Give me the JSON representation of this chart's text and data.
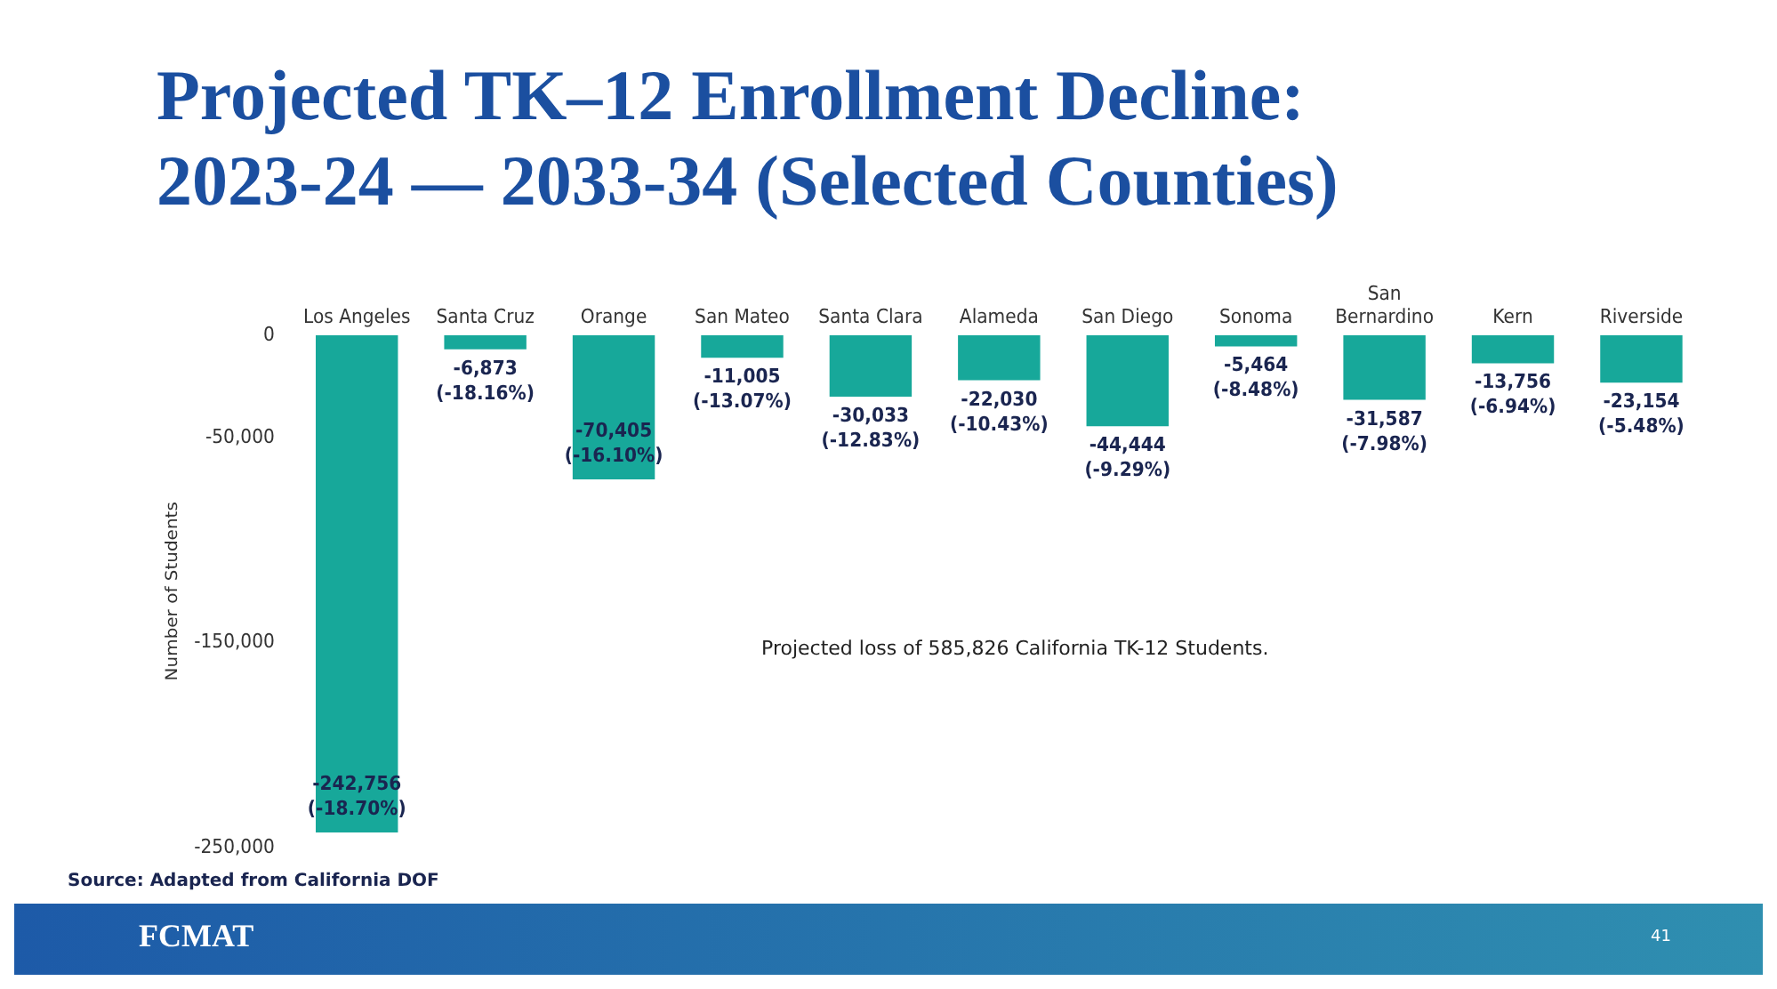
{
  "chart_data": {
    "type": "bar",
    "title": "Projected TK–12 Enrollment Decline:\n2023-24 — 2033-34 (Selected Counties)",
    "ylabel": "Number of Students",
    "categories": [
      "Los Angeles",
      "Santa Cruz",
      "Orange",
      "San Mateo",
      "Santa Clara",
      "Alameda",
      "San Diego",
      "Sonoma",
      "San Bernardino",
      "Kern",
      "Riverside"
    ],
    "values": [
      -242756,
      -6873,
      -70405,
      -11005,
      -30033,
      -22030,
      -44444,
      -5464,
      -31587,
      -13756,
      -23154
    ],
    "value_labels": [
      "-242,756\n(-18.70%)",
      "-6,873\n(-18.16%)",
      "-70,405\n(-16.10%)",
      "-11,005\n(-13.07%)",
      "-30,033\n(-12.83%)",
      "-22,030\n(-10.43%)",
      "-44,444\n(-9.29%)",
      "-5,464\n(-8.48%)",
      "-31,587\n(-7.98%)",
      "-13,756\n(-6.94%)",
      "-23,154\n(-5.48%)"
    ],
    "color": "#17a89a",
    "ylim": [
      -250000,
      0
    ],
    "yticks": [
      {
        "value": 0,
        "label": "0"
      },
      {
        "value": -50000,
        "label": "-50,000"
      },
      {
        "value": -150000,
        "label": "-150,000"
      },
      {
        "value": -250000,
        "label": "-250,000"
      }
    ],
    "grid": false,
    "legend": false,
    "annotations": [
      "Projected loss of 585,826 California TK-12 Students.",
      "Source: Adapted from California DOF",
      "FCMAT",
      "41"
    ]
  }
}
